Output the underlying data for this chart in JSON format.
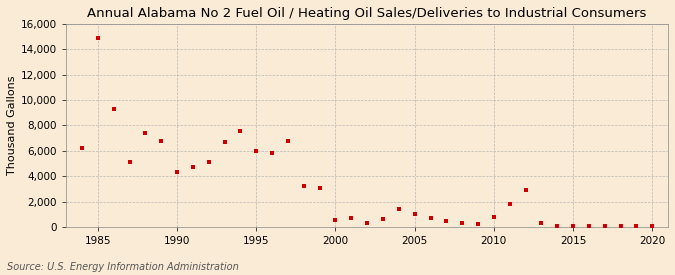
{
  "title": "Annual Alabama No 2 Fuel Oil / Heating Oil Sales/Deliveries to Industrial Consumers",
  "ylabel": "Thousand Gallons",
  "source": "Source: U.S. Energy Information Administration",
  "background_color": "#faebd7",
  "dot_color": "#cc0000",
  "years": [
    1984,
    1985,
    1986,
    1987,
    1988,
    1989,
    1990,
    1991,
    1992,
    1993,
    1994,
    1995,
    1996,
    1997,
    1998,
    1999,
    2000,
    2001,
    2002,
    2003,
    2004,
    2005,
    2006,
    2007,
    2008,
    2009,
    2010,
    2011,
    2012,
    2013,
    2014,
    2015,
    2016,
    2017,
    2018,
    2019,
    2020
  ],
  "values": [
    6200,
    14900,
    9300,
    5100,
    7400,
    6800,
    4300,
    4700,
    5100,
    6700,
    7600,
    5950,
    5800,
    6800,
    3200,
    3050,
    550,
    700,
    300,
    600,
    1400,
    1000,
    700,
    500,
    300,
    200,
    800,
    1850,
    2900,
    300,
    100,
    100,
    100,
    50,
    50,
    50,
    50
  ],
  "xlim": [
    1983,
    2021
  ],
  "ylim": [
    0,
    16000
  ],
  "yticks": [
    0,
    2000,
    4000,
    6000,
    8000,
    10000,
    12000,
    14000,
    16000
  ],
  "xticks": [
    1985,
    1990,
    1995,
    2000,
    2005,
    2010,
    2015,
    2020
  ],
  "grid_color": "#aaaaaa",
  "title_fontsize": 9.5,
  "label_fontsize": 8,
  "tick_fontsize": 7.5,
  "source_fontsize": 7
}
